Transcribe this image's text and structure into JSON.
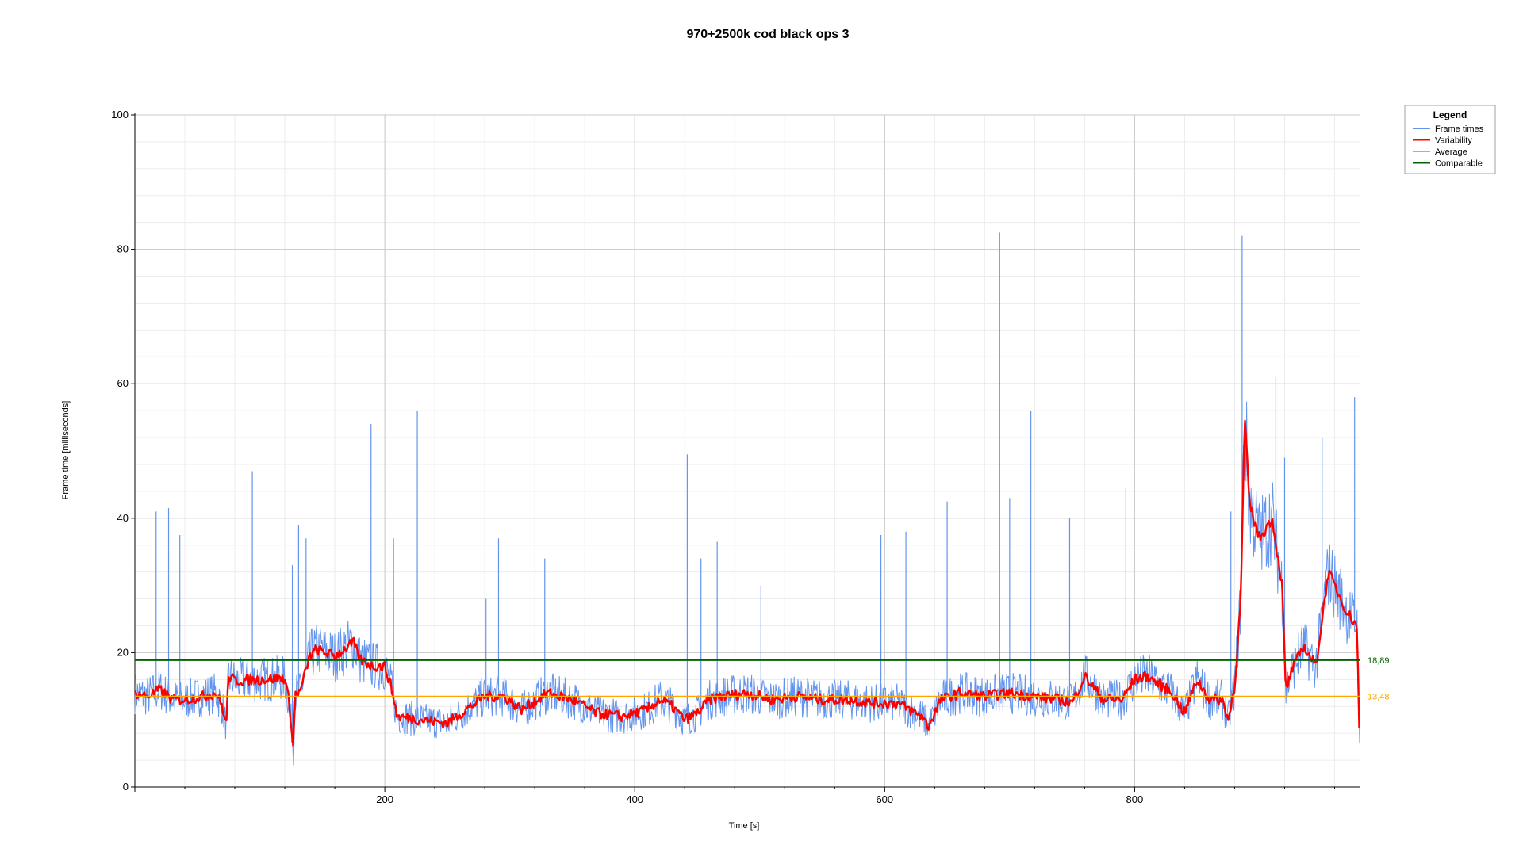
{
  "chart_data": {
    "type": "line",
    "title": "970+2500k cod black ops 3",
    "xlabel": "Time [s]",
    "ylabel": "Frame time [milliseconds]",
    "xlim": [
      0,
      980
    ],
    "ylim": [
      0,
      100
    ],
    "x_ticks": [
      200,
      400,
      600,
      800
    ],
    "y_ticks": [
      0,
      20,
      40,
      60,
      80,
      100
    ],
    "grid": true,
    "legend": {
      "title": "Legend",
      "placement": "top-right",
      "entries": [
        {
          "name": "Frame times",
          "color": "#6495ed"
        },
        {
          "name": "Variability",
          "color": "#ff0000"
        },
        {
          "name": "Average",
          "color": "#ffa500"
        },
        {
          "name": "Comparable",
          "color": "#006400"
        }
      ]
    },
    "reference_lines": [
      {
        "name": "Comparable",
        "value": 18.89,
        "label": "18,89",
        "color": "#006400"
      },
      {
        "name": "Average",
        "value": 13.48,
        "label": "13,48",
        "color": "#ffa500"
      }
    ],
    "series": [
      {
        "name": "Variability",
        "color": "#ff0000",
        "x": [
          0,
          10,
          20,
          30,
          40,
          55,
          65,
          70,
          73,
          75,
          80,
          100,
          120,
          124,
          127,
          128,
          132,
          140,
          145,
          160,
          175,
          180,
          190,
          200,
          205,
          210,
          230,
          250,
          265,
          280,
          295,
          310,
          330,
          350,
          370,
          390,
          410,
          420,
          430,
          440,
          450,
          460,
          470,
          490,
          510,
          530,
          550,
          570,
          590,
          610,
          630,
          635,
          645,
          660,
          680,
          700,
          720,
          740,
          750,
          760,
          775,
          790,
          800,
          810,
          830,
          840,
          850,
          860,
          870,
          875,
          880,
          885,
          888,
          892,
          900,
          910,
          918,
          921,
          925,
          935,
          945,
          955,
          970,
          978,
          980
        ],
        "y": [
          14,
          13.5,
          14.5,
          13,
          13,
          13.5,
          14,
          12,
          9,
          16.5,
          15.8,
          16,
          16.2,
          12,
          5,
          14,
          14,
          19.5,
          20.5,
          19.5,
          21.5,
          19,
          18,
          18,
          15,
          10.5,
          10,
          9.5,
          11.5,
          13.5,
          13.5,
          11.5,
          14,
          13,
          11,
          10.5,
          11.5,
          13,
          12,
          10,
          11,
          13,
          13.5,
          14,
          13,
          13.5,
          13,
          13,
          12.5,
          12.5,
          10.5,
          9,
          13,
          14,
          13.5,
          14,
          13.5,
          13,
          12.5,
          16.5,
          13,
          13,
          16,
          16.5,
          14,
          11,
          16,
          13,
          13,
          10,
          15,
          28,
          55,
          42,
          37,
          40,
          30,
          14,
          17,
          21,
          18,
          32,
          26,
          24,
          5.5
        ]
      },
      {
        "name": "Frame times",
        "color": "#6495ed",
        "x": [
          0,
          10,
          20,
          30,
          40,
          55,
          65,
          70,
          73,
          75,
          80,
          100,
          120,
          124,
          127,
          128,
          132,
          140,
          145,
          160,
          175,
          180,
          190,
          200,
          205,
          210,
          230,
          250,
          265,
          280,
          295,
          310,
          330,
          350,
          370,
          390,
          410,
          420,
          430,
          440,
          450,
          460,
          470,
          490,
          510,
          530,
          550,
          570,
          590,
          610,
          630,
          635,
          645,
          660,
          680,
          700,
          720,
          740,
          750,
          760,
          775,
          790,
          800,
          810,
          830,
          840,
          850,
          860,
          870,
          875,
          880,
          885,
          888,
          892,
          900,
          910,
          918,
          921,
          925,
          935,
          945,
          955,
          970,
          978,
          980
        ],
        "y": [
          14,
          13.5,
          14.5,
          13,
          13,
          13.5,
          14,
          12,
          9,
          16.5,
          15.8,
          16,
          16.2,
          12,
          5,
          14,
          14,
          19.5,
          20.5,
          19.5,
          21.5,
          19,
          18,
          18,
          15,
          10.5,
          10,
          9.5,
          11.5,
          13.5,
          13.5,
          11.5,
          14,
          13,
          11,
          10.5,
          11.5,
          13,
          12,
          10,
          11,
          13,
          13.5,
          14,
          13,
          13.5,
          13,
          13,
          12.5,
          12.5,
          10.5,
          9,
          13,
          14,
          13.5,
          14,
          13.5,
          13,
          12.5,
          16.5,
          13,
          13,
          16,
          16.5,
          14,
          11,
          16,
          13,
          13,
          10,
          15,
          28,
          55,
          42,
          37,
          40,
          30,
          14,
          17,
          21,
          18,
          32,
          26,
          24,
          5.5
        ],
        "spikes": [
          {
            "x": 17,
            "y": 41
          },
          {
            "x": 27,
            "y": 41.5
          },
          {
            "x": 36,
            "y": 37.5
          },
          {
            "x": 94,
            "y": 47
          },
          {
            "x": 126,
            "y": 33
          },
          {
            "x": 131,
            "y": 39
          },
          {
            "x": 137,
            "y": 37
          },
          {
            "x": 189,
            "y": 54
          },
          {
            "x": 207,
            "y": 37
          },
          {
            "x": 226,
            "y": 56
          },
          {
            "x": 281,
            "y": 28
          },
          {
            "x": 291,
            "y": 37
          },
          {
            "x": 328,
            "y": 34
          },
          {
            "x": 442,
            "y": 49.5
          },
          {
            "x": 453,
            "y": 34
          },
          {
            "x": 466,
            "y": 36.5
          },
          {
            "x": 501,
            "y": 30
          },
          {
            "x": 597,
            "y": 37.5
          },
          {
            "x": 617,
            "y": 38
          },
          {
            "x": 650,
            "y": 42.5
          },
          {
            "x": 692,
            "y": 82.5
          },
          {
            "x": 700,
            "y": 43
          },
          {
            "x": 717,
            "y": 56
          },
          {
            "x": 748,
            "y": 40
          },
          {
            "x": 793,
            "y": 44.5
          },
          {
            "x": 877,
            "y": 41
          },
          {
            "x": 886,
            "y": 82
          },
          {
            "x": 913,
            "y": 61
          },
          {
            "x": 920,
            "y": 49
          },
          {
            "x": 950,
            "y": 52
          },
          {
            "x": 976,
            "y": 58
          }
        ]
      }
    ]
  }
}
